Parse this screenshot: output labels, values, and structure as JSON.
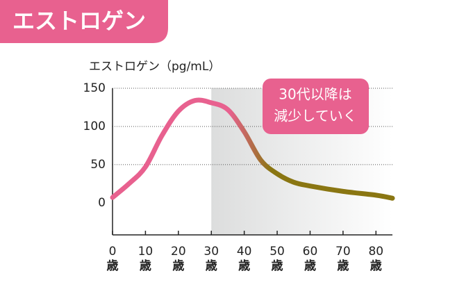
{
  "chart_data": {
    "type": "line",
    "badge": "エストロゲン",
    "y_label": "エストロゲン（pg/mL）",
    "annotation": [
      "30代以降は",
      "減少していく"
    ],
    "x": [
      0,
      5,
      10,
      15,
      20,
      25,
      30,
      35,
      40,
      45,
      50,
      55,
      60,
      70,
      80,
      85
    ],
    "x_unit": "歳",
    "series": [
      {
        "colors": [
          "#e8618f",
          "#8a7612"
        ],
        "values": [
          7,
          25,
          47,
          88,
          120,
          134,
          131,
          122,
          93,
          56,
          38,
          27,
          22,
          15,
          10,
          6
        ]
      }
    ],
    "xlim": [
      0,
      85
    ],
    "xticks": [
      0,
      10,
      20,
      30,
      40,
      50,
      60,
      70,
      80
    ],
    "ylim": [
      -42,
      150
    ],
    "yticks": [
      0,
      50,
      100,
      150
    ],
    "shade_from": 30,
    "grid": true
  }
}
